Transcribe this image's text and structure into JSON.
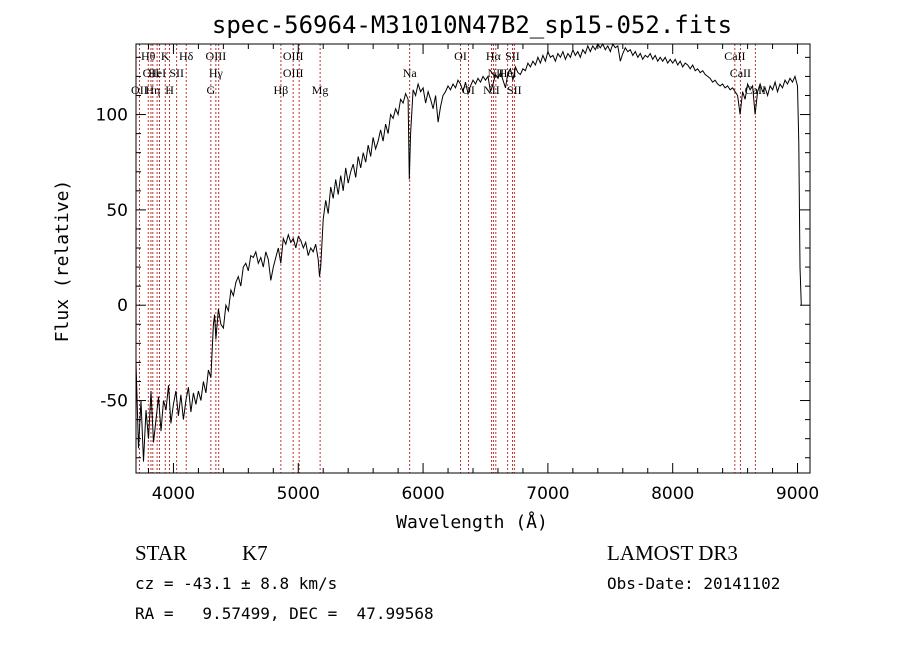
{
  "chart_data": {
    "type": "line",
    "title": "spec-56964-M31010N47B2_sp15-052.fits",
    "xlabel": "Wavelength (Å)",
    "ylabel": "Flux (relative)",
    "xlim": [
      3700,
      9100
    ],
    "ylim": [
      -88,
      137
    ],
    "xticks": [
      4000,
      5000,
      6000,
      7000,
      8000,
      9000
    ],
    "yticks": [
      -50,
      0,
      50,
      100
    ],
    "grid": false,
    "series": [
      {
        "points": [
          [
            3700,
            -30
          ],
          [
            3720,
            -75
          ],
          [
            3740,
            -50
          ],
          [
            3760,
            -82
          ],
          [
            3780,
            -55
          ],
          [
            3800,
            -70
          ],
          [
            3820,
            -45
          ],
          [
            3840,
            -72
          ],
          [
            3860,
            -60
          ],
          [
            3880,
            -48
          ],
          [
            3900,
            -66
          ],
          [
            3920,
            -50
          ],
          [
            3940,
            -55
          ],
          [
            3960,
            -42
          ],
          [
            3980,
            -62
          ],
          [
            4000,
            -52
          ],
          [
            4020,
            -45
          ],
          [
            4040,
            -58
          ],
          [
            4060,
            -47
          ],
          [
            4080,
            -60
          ],
          [
            4100,
            -50
          ],
          [
            4120,
            -43
          ],
          [
            4140,
            -56
          ],
          [
            4160,
            -46
          ],
          [
            4180,
            -52
          ],
          [
            4200,
            -45
          ],
          [
            4220,
            -50
          ],
          [
            4240,
            -40
          ],
          [
            4260,
            -46
          ],
          [
            4280,
            -34
          ],
          [
            4300,
            -38
          ],
          [
            4320,
            -10
          ],
          [
            4330,
            -5
          ],
          [
            4340,
            -18
          ],
          [
            4360,
            -2
          ],
          [
            4380,
            -10
          ],
          [
            4400,
            -12
          ],
          [
            4420,
            0
          ],
          [
            4440,
            -3
          ],
          [
            4460,
            8
          ],
          [
            4480,
            5
          ],
          [
            4500,
            12
          ],
          [
            4520,
            15
          ],
          [
            4540,
            10
          ],
          [
            4560,
            20
          ],
          [
            4580,
            22
          ],
          [
            4600,
            18
          ],
          [
            4620,
            26
          ],
          [
            4640,
            25
          ],
          [
            4660,
            28
          ],
          [
            4680,
            22
          ],
          [
            4700,
            25
          ],
          [
            4720,
            20
          ],
          [
            4740,
            28
          ],
          [
            4760,
            24
          ],
          [
            4780,
            13
          ],
          [
            4800,
            20
          ],
          [
            4820,
            25
          ],
          [
            4840,
            30
          ],
          [
            4860,
            22
          ],
          [
            4880,
            35
          ],
          [
            4900,
            32
          ],
          [
            4920,
            37
          ],
          [
            4940,
            33
          ],
          [
            4960,
            35
          ],
          [
            4980,
            30
          ],
          [
            5000,
            36
          ],
          [
            5020,
            34
          ],
          [
            5040,
            30
          ],
          [
            5060,
            33
          ],
          [
            5080,
            26
          ],
          [
            5100,
            30
          ],
          [
            5120,
            28
          ],
          [
            5140,
            32
          ],
          [
            5160,
            24
          ],
          [
            5170,
            15
          ],
          [
            5180,
            20
          ],
          [
            5200,
            45
          ],
          [
            5220,
            55
          ],
          [
            5240,
            48
          ],
          [
            5260,
            62
          ],
          [
            5280,
            56
          ],
          [
            5300,
            66
          ],
          [
            5320,
            58
          ],
          [
            5340,
            68
          ],
          [
            5360,
            60
          ],
          [
            5380,
            72
          ],
          [
            5400,
            64
          ],
          [
            5420,
            70
          ],
          [
            5440,
            74
          ],
          [
            5460,
            67
          ],
          [
            5480,
            78
          ],
          [
            5500,
            72
          ],
          [
            5520,
            80
          ],
          [
            5540,
            75
          ],
          [
            5560,
            84
          ],
          [
            5580,
            78
          ],
          [
            5600,
            88
          ],
          [
            5620,
            82
          ],
          [
            5640,
            86
          ],
          [
            5660,
            92
          ],
          [
            5680,
            86
          ],
          [
            5700,
            95
          ],
          [
            5720,
            90
          ],
          [
            5740,
            100
          ],
          [
            5760,
            98
          ],
          [
            5780,
            103
          ],
          [
            5800,
            100
          ],
          [
            5820,
            108
          ],
          [
            5840,
            106
          ],
          [
            5860,
            111
          ],
          [
            5880,
            108
          ],
          [
            5890,
            66
          ],
          [
            5900,
            90
          ],
          [
            5920,
            113
          ],
          [
            5940,
            110
          ],
          [
            5960,
            116
          ],
          [
            5980,
            112
          ],
          [
            6000,
            114
          ],
          [
            6020,
            106
          ],
          [
            6040,
            112
          ],
          [
            6060,
            108
          ],
          [
            6080,
            103
          ],
          [
            6100,
            110
          ],
          [
            6120,
            96
          ],
          [
            6140,
            104
          ],
          [
            6160,
            110
          ],
          [
            6180,
            112
          ],
          [
            6200,
            115
          ],
          [
            6220,
            113
          ],
          [
            6240,
            116
          ],
          [
            6260,
            114
          ],
          [
            6280,
            118
          ],
          [
            6300,
            116
          ],
          [
            6320,
            112
          ],
          [
            6340,
            117
          ],
          [
            6360,
            111
          ],
          [
            6380,
            115
          ],
          [
            6400,
            118
          ],
          [
            6420,
            116
          ],
          [
            6440,
            119
          ],
          [
            6460,
            117
          ],
          [
            6480,
            120
          ],
          [
            6500,
            118
          ],
          [
            6520,
            120
          ],
          [
            6540,
            112
          ],
          [
            6560,
            116
          ],
          [
            6580,
            121
          ],
          [
            6600,
            119
          ],
          [
            6620,
            122
          ],
          [
            6640,
            118
          ],
          [
            6660,
            114
          ],
          [
            6680,
            122
          ],
          [
            6700,
            124
          ],
          [
            6720,
            118
          ],
          [
            6740,
            125
          ],
          [
            6760,
            122
          ],
          [
            6780,
            121
          ],
          [
            6800,
            124
          ],
          [
            6820,
            123
          ],
          [
            6840,
            127
          ],
          [
            6860,
            125
          ],
          [
            6880,
            128
          ],
          [
            6900,
            126
          ],
          [
            6920,
            130
          ],
          [
            6940,
            127
          ],
          [
            6960,
            131
          ],
          [
            6980,
            128
          ],
          [
            7000,
            133
          ],
          [
            7020,
            130
          ],
          [
            7040,
            131
          ],
          [
            7060,
            128
          ],
          [
            7080,
            132
          ],
          [
            7100,
            130
          ],
          [
            7120,
            133
          ],
          [
            7140,
            129
          ],
          [
            7160,
            132
          ],
          [
            7180,
            130
          ],
          [
            7200,
            134
          ],
          [
            7220,
            131
          ],
          [
            7240,
            133
          ],
          [
            7260,
            130
          ],
          [
            7280,
            134
          ],
          [
            7300,
            132
          ],
          [
            7320,
            136
          ],
          [
            7340,
            133
          ],
          [
            7360,
            136
          ],
          [
            7380,
            134
          ],
          [
            7400,
            137
          ],
          [
            7420,
            135
          ],
          [
            7440,
            137
          ],
          [
            7460,
            134
          ],
          [
            7480,
            136
          ],
          [
            7500,
            133
          ],
          [
            7520,
            137
          ],
          [
            7540,
            135
          ],
          [
            7560,
            136
          ],
          [
            7580,
            128
          ],
          [
            7600,
            132
          ],
          [
            7620,
            135
          ],
          [
            7640,
            133
          ],
          [
            7660,
            134
          ],
          [
            7680,
            131
          ],
          [
            7700,
            133
          ],
          [
            7720,
            130
          ],
          [
            7740,
            132
          ],
          [
            7760,
            129
          ],
          [
            7780,
            131
          ],
          [
            7800,
            130
          ],
          [
            7820,
            132
          ],
          [
            7840,
            129
          ],
          [
            7860,
            131
          ],
          [
            7880,
            128
          ],
          [
            7900,
            130
          ],
          [
            7920,
            128
          ],
          [
            7940,
            130
          ],
          [
            7960,
            127
          ],
          [
            7980,
            129
          ],
          [
            8000,
            127
          ],
          [
            8020,
            129
          ],
          [
            8040,
            126
          ],
          [
            8060,
            128
          ],
          [
            8080,
            125
          ],
          [
            8100,
            127
          ],
          [
            8120,
            126
          ],
          [
            8140,
            124
          ],
          [
            8160,
            126
          ],
          [
            8180,
            123
          ],
          [
            8200,
            124
          ],
          [
            8220,
            122
          ],
          [
            8240,
            123
          ],
          [
            8260,
            121
          ],
          [
            8280,
            120
          ],
          [
            8300,
            119
          ],
          [
            8320,
            117
          ],
          [
            8340,
            118
          ],
          [
            8360,
            116
          ],
          [
            8380,
            115
          ],
          [
            8400,
            116
          ],
          [
            8420,
            114
          ],
          [
            8440,
            115
          ],
          [
            8460,
            113
          ],
          [
            8480,
            114
          ],
          [
            8500,
            112
          ],
          [
            8520,
            110
          ],
          [
            8540,
            100
          ],
          [
            8560,
            112
          ],
          [
            8580,
            108
          ],
          [
            8600,
            116
          ],
          [
            8620,
            113
          ],
          [
            8640,
            115
          ],
          [
            8660,
            100
          ],
          [
            8680,
            112
          ],
          [
            8700,
            116
          ],
          [
            8720,
            112
          ],
          [
            8740,
            114
          ],
          [
            8760,
            110
          ],
          [
            8780,
            115
          ],
          [
            8800,
            113
          ],
          [
            8820,
            117
          ],
          [
            8840,
            112
          ],
          [
            8860,
            116
          ],
          [
            8880,
            114
          ],
          [
            8900,
            118
          ],
          [
            8920,
            116
          ],
          [
            8940,
            119
          ],
          [
            8960,
            117
          ],
          [
            8980,
            120
          ],
          [
            9000,
            115
          ],
          [
            9010,
            85
          ],
          [
            9020,
            20
          ],
          [
            9030,
            0
          ]
        ]
      }
    ],
    "line_markers": [
      {
        "wavelength": 3727,
        "labels": [
          "OII"
        ],
        "row": 2
      },
      {
        "wavelength": 3798,
        "labels": [
          "Hθ"
        ],
        "row": 0
      },
      {
        "wavelength": 3820,
        "labels": [
          "OII"
        ],
        "row": 1
      },
      {
        "wavelength": 3835,
        "labels": [
          "Hη"
        ],
        "row": 2
      },
      {
        "wavelength": 3869,
        "labels": [
          "HeI"
        ],
        "row": 1
      },
      {
        "wavelength": 3889,
        "labels": [],
        "row": 0
      },
      {
        "wavelength": 3934,
        "labels": [
          "K"
        ],
        "row": 0
      },
      {
        "wavelength": 3969,
        "labels": [
          "H"
        ],
        "row": 2
      },
      {
        "wavelength": 4026,
        "labels": [
          "SII"
        ],
        "row": 1
      },
      {
        "wavelength": 4102,
        "labels": [
          "Hδ"
        ],
        "row": 0
      },
      {
        "wavelength": 4300,
        "labels": [
          "G"
        ],
        "row": 2
      },
      {
        "wavelength": 4340,
        "labels": [
          "OIII",
          "Hγ"
        ],
        "row": 0
      },
      {
        "wavelength": 4363,
        "labels": [],
        "row": 0
      },
      {
        "wavelength": 4861,
        "labels": [
          "Hβ"
        ],
        "row": 2
      },
      {
        "wavelength": 4959,
        "labels": [
          "OIII",
          "OIII"
        ],
        "row": 0
      },
      {
        "wavelength": 5007,
        "labels": [],
        "row": 0
      },
      {
        "wavelength": 5175,
        "labels": [
          "Mg"
        ],
        "row": 2
      },
      {
        "wavelength": 5893,
        "labels": [
          "Na"
        ],
        "row": 1
      },
      {
        "wavelength": 6300,
        "labels": [
          "OI"
        ],
        "row": 0
      },
      {
        "wavelength": 6364,
        "labels": [
          "OI"
        ],
        "row": 2
      },
      {
        "wavelength": 6548,
        "labels": [
          "NII"
        ],
        "row": 2
      },
      {
        "wavelength": 6563,
        "labels": [
          "Hα"
        ],
        "row": 0
      },
      {
        "wavelength": 6583,
        "labels": [
          "NII"
        ],
        "row": 1
      },
      {
        "wavelength": 6678,
        "labels": [
          "HeI"
        ],
        "row": 1
      },
      {
        "wavelength": 6716,
        "labels": [
          "SII"
        ],
        "row": 0
      },
      {
        "wavelength": 6731,
        "labels": [
          "SII"
        ],
        "row": 2
      },
      {
        "wavelength": 8498,
        "labels": [
          "CaII"
        ],
        "row": 0
      },
      {
        "wavelength": 8542,
        "labels": [
          "CaII"
        ],
        "row": 1
      },
      {
        "wavelength": 8662,
        "labels": [
          "CaII"
        ],
        "row": 2
      }
    ],
    "colors": {
      "spectrum": "#000000",
      "markers": "#b00000"
    }
  },
  "info": {
    "object_class": "STAR",
    "subclass": "K7",
    "survey": "LAMOST DR3",
    "cz": "cz = -43.1 ± 8.8 km/s",
    "obs_date": "Obs-Date: 20141102",
    "coords": "RA =   9.57499, DEC =  47.99568"
  }
}
